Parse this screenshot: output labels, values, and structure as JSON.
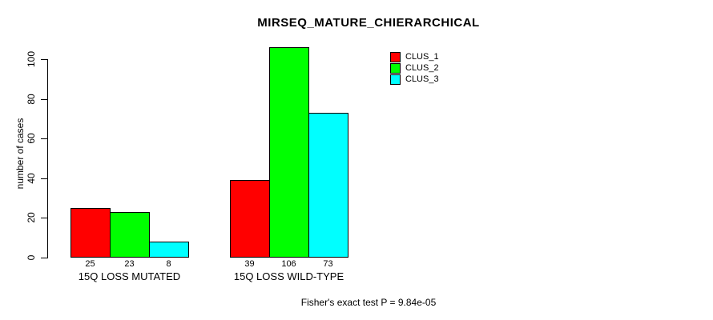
{
  "title": "MIRSEQ_MATURE_CHIERARCHICAL",
  "footer": "Fisher's exact test P = 9.84e-05",
  "chart_data": {
    "type": "bar",
    "categories": [
      "15Q LOSS MUTATED",
      "15Q LOSS WILD-TYPE"
    ],
    "series": [
      {
        "name": "CLUS_1",
        "color": "#ff0000",
        "values": [
          25,
          39
        ]
      },
      {
        "name": "CLUS_2",
        "color": "#00ff00",
        "values": [
          23,
          106
        ]
      },
      {
        "name": "CLUS_3",
        "color": "#00ffff",
        "values": [
          8,
          73
        ]
      }
    ],
    "bar_value_labels": [
      [
        25,
        23,
        8
      ],
      [
        39,
        106,
        73
      ]
    ],
    "title": "MIRSEQ_MATURE_CHIERARCHICAL",
    "xlabel": "",
    "ylabel": "number of cases",
    "yticks": [
      0,
      20,
      40,
      60,
      80,
      100
    ],
    "ylim": [
      0,
      100
    ],
    "grid": false,
    "legend_position": "top-right",
    "legend_entries": [
      "CLUS_1",
      "CLUS_2",
      "CLUS_3"
    ],
    "annotation": "Fisher's exact test P = 9.84e-05"
  }
}
